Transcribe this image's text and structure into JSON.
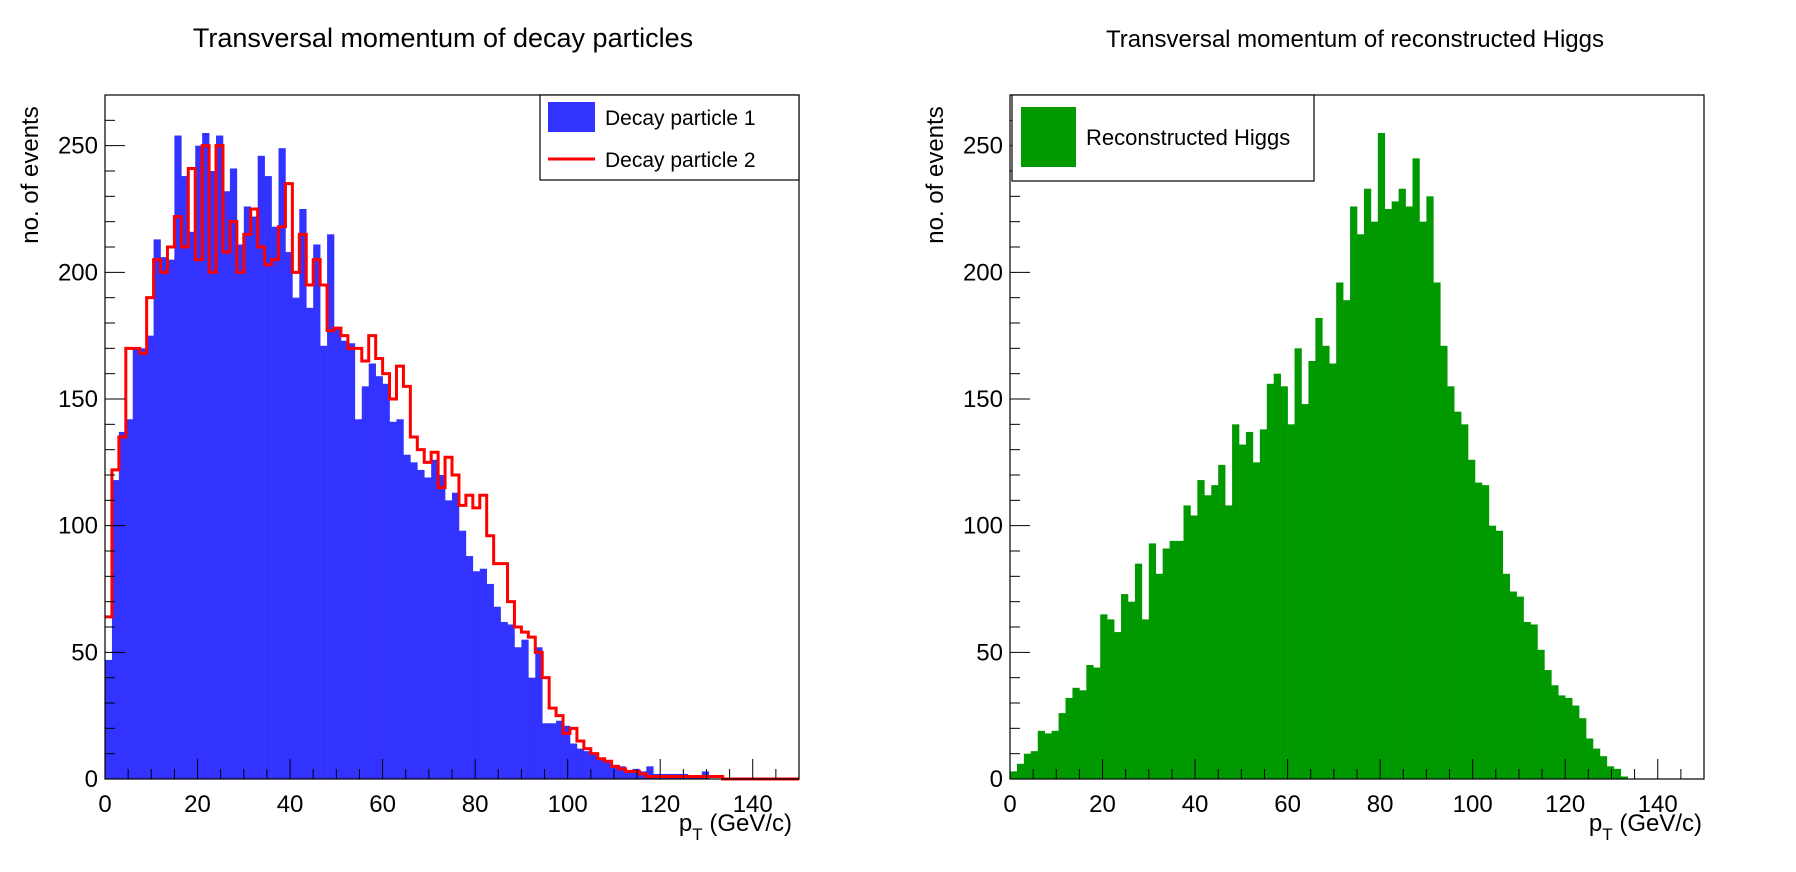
{
  "chart_data": [
    {
      "type": "bar",
      "title": "Transversal momentum of decay particles",
      "ylabel": "no. of events",
      "xlabel": "p",
      "xlabel_sub": "T",
      "xlabel_unit": " (GeV/c)",
      "xlim": [
        0,
        150
      ],
      "ylim": [
        0,
        270
      ],
      "bin_width": 1.5,
      "xticks": [
        0,
        20,
        40,
        60,
        80,
        100,
        120,
        140
      ],
      "yticks": [
        0,
        50,
        100,
        150,
        200,
        250
      ],
      "legend_position": "top-right",
      "series": [
        {
          "name": "Decay particle 1",
          "style": "filled",
          "color": "#3333ff",
          "values": [
            47,
            118,
            137,
            142,
            170,
            170,
            175,
            213,
            206,
            205,
            254,
            238,
            216,
            250,
            255,
            240,
            254,
            232,
            241,
            211,
            226,
            222,
            246,
            238,
            218,
            249,
            208,
            190,
            225,
            186,
            211,
            171,
            215,
            178,
            173,
            172,
            142,
            155,
            164,
            159,
            156,
            141,
            142,
            128,
            125,
            122,
            119,
            126,
            120,
            110,
            113,
            98,
            88,
            82,
            83,
            77,
            68,
            62,
            61,
            52,
            55,
            40,
            52,
            22,
            22,
            23,
            21,
            14,
            12,
            11,
            10,
            8,
            7,
            5,
            5,
            3,
            4,
            3,
            5,
            2,
            2,
            2,
            2,
            2,
            1,
            1,
            3,
            0,
            0,
            0,
            0,
            0,
            0,
            0,
            0,
            0,
            0,
            0,
            0,
            0
          ]
        },
        {
          "name": "Decay particle 2",
          "style": "step",
          "color": "#ff0000",
          "values": [
            64,
            122,
            135,
            170,
            170,
            168,
            190,
            205,
            200,
            210,
            222,
            210,
            241,
            205,
            250,
            200,
            250,
            208,
            220,
            200,
            215,
            225,
            210,
            203,
            205,
            218,
            235,
            200,
            215,
            195,
            205,
            195,
            177,
            178,
            175,
            170,
            170,
            165,
            175,
            166,
            160,
            150,
            163,
            155,
            135,
            130,
            125,
            129,
            115,
            127,
            120,
            108,
            112,
            107,
            112,
            96,
            85,
            85,
            70,
            60,
            58,
            56,
            50,
            40,
            28,
            25,
            18,
            20,
            15,
            12,
            10,
            8,
            7,
            5,
            4,
            3,
            3,
            2,
            1,
            1,
            1,
            1,
            1,
            1,
            1,
            1,
            1,
            1,
            1,
            0,
            0,
            0,
            0,
            0,
            0,
            0,
            0,
            0,
            0,
            0
          ]
        }
      ]
    },
    {
      "type": "bar",
      "title": "Transversal momentum of reconstructed Higgs",
      "ylabel": "no. of events",
      "xlabel": "p",
      "xlabel_sub": "T",
      "xlabel_unit": " (GeV/c)",
      "xlim": [
        0,
        150
      ],
      "ylim": [
        0,
        270
      ],
      "bin_width": 1.5,
      "xticks": [
        0,
        20,
        40,
        60,
        80,
        100,
        120,
        140
      ],
      "yticks": [
        0,
        50,
        100,
        150,
        200,
        250
      ],
      "legend_position": "top-left",
      "series": [
        {
          "name": "Reconstructed Higgs",
          "style": "filled",
          "color": "#009900",
          "values": [
            3,
            6,
            10,
            11,
            19,
            18,
            19,
            26,
            32,
            36,
            35,
            45,
            44,
            65,
            63,
            58,
            73,
            70,
            85,
            63,
            93,
            81,
            91,
            94,
            94,
            108,
            104,
            118,
            112,
            116,
            124,
            108,
            140,
            132,
            137,
            125,
            138,
            156,
            160,
            155,
            140,
            170,
            148,
            165,
            182,
            171,
            164,
            196,
            189,
            226,
            215,
            233,
            220,
            255,
            225,
            228,
            233,
            226,
            245,
            220,
            230,
            196,
            171,
            155,
            145,
            140,
            126,
            117,
            116,
            100,
            98,
            81,
            74,
            72,
            62,
            61,
            51,
            43,
            37,
            33,
            32,
            29,
            24,
            16,
            12,
            9,
            5,
            4,
            1,
            0,
            0,
            0,
            0,
            0,
            0,
            0,
            0,
            0,
            0,
            0
          ]
        }
      ]
    }
  ]
}
